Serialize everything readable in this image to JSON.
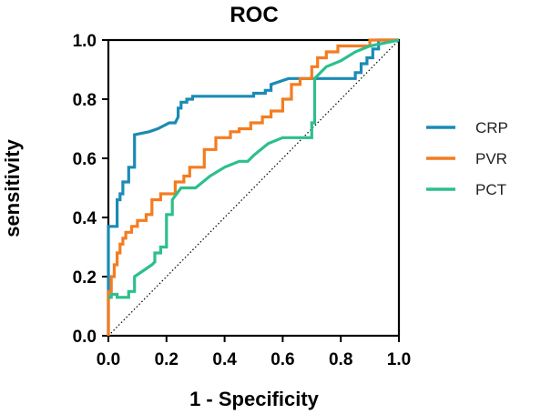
{
  "chart_data": {
    "type": "line",
    "title": "ROC",
    "xlabel": "1 - Specificity",
    "ylabel": "sensitivity",
    "xlim": [
      0.0,
      1.0
    ],
    "ylim": [
      0.0,
      1.0
    ],
    "xticks": [
      "0.0",
      "0.2",
      "0.4",
      "0.6",
      "0.8",
      "1.0"
    ],
    "yticks": [
      "0.0",
      "0.2",
      "0.4",
      "0.6",
      "0.8",
      "1.0"
    ],
    "grid": false,
    "legend_position": "right",
    "reference_line": {
      "style": "dotted",
      "color": "#000000",
      "x": [
        0,
        1
      ],
      "y": [
        0,
        1
      ]
    },
    "series": [
      {
        "name": "CRP",
        "color": "#1a8bb5",
        "x": [
          0,
          0,
          0.03,
          0.03,
          0.04,
          0.04,
          0.05,
          0.05,
          0.07,
          0.07,
          0.09,
          0.09,
          0.14,
          0.17,
          0.21,
          0.23,
          0.24,
          0.24,
          0.25,
          0.25,
          0.27,
          0.27,
          0.29,
          0.29,
          0.5,
          0.5,
          0.54,
          0.54,
          0.56,
          0.56,
          0.62,
          0.65,
          0.85,
          0.85,
          0.87,
          0.87,
          0.89,
          0.89,
          0.91,
          0.91,
          0.93,
          0.93,
          1.0
        ],
        "y": [
          0,
          0.37,
          0.37,
          0.46,
          0.46,
          0.48,
          0.48,
          0.52,
          0.52,
          0.57,
          0.57,
          0.68,
          0.69,
          0.7,
          0.72,
          0.72,
          0.74,
          0.77,
          0.77,
          0.79,
          0.79,
          0.8,
          0.8,
          0.81,
          0.81,
          0.82,
          0.82,
          0.83,
          0.83,
          0.85,
          0.87,
          0.87,
          0.87,
          0.89,
          0.89,
          0.92,
          0.92,
          0.94,
          0.94,
          0.97,
          0.97,
          1.0,
          1.0
        ]
      },
      {
        "name": "PVR",
        "color": "#f47c20",
        "x": [
          0,
          0,
          0.01,
          0.01,
          0.02,
          0.02,
          0.03,
          0.03,
          0.04,
          0.04,
          0.05,
          0.05,
          0.06,
          0.06,
          0.08,
          0.08,
          0.1,
          0.1,
          0.13,
          0.13,
          0.15,
          0.15,
          0.18,
          0.18,
          0.23,
          0.23,
          0.26,
          0.26,
          0.28,
          0.28,
          0.33,
          0.33,
          0.37,
          0.37,
          0.42,
          0.42,
          0.45,
          0.45,
          0.49,
          0.49,
          0.53,
          0.53,
          0.56,
          0.56,
          0.6,
          0.6,
          0.63,
          0.63,
          0.66,
          0.66,
          0.7,
          0.7,
          0.72,
          0.72,
          0.75,
          0.75,
          0.79,
          0.79,
          0.9,
          0.9,
          0.95,
          1.0
        ],
        "y": [
          0,
          0.15,
          0.15,
          0.2,
          0.2,
          0.24,
          0.24,
          0.28,
          0.28,
          0.31,
          0.31,
          0.33,
          0.33,
          0.35,
          0.35,
          0.37,
          0.37,
          0.39,
          0.39,
          0.41,
          0.41,
          0.46,
          0.46,
          0.48,
          0.48,
          0.52,
          0.52,
          0.54,
          0.54,
          0.57,
          0.57,
          0.63,
          0.63,
          0.67,
          0.67,
          0.69,
          0.69,
          0.7,
          0.7,
          0.72,
          0.72,
          0.74,
          0.74,
          0.76,
          0.76,
          0.8,
          0.8,
          0.85,
          0.85,
          0.87,
          0.87,
          0.91,
          0.91,
          0.94,
          0.94,
          0.96,
          0.96,
          0.98,
          0.98,
          1.0,
          1.0,
          1.0
        ]
      },
      {
        "name": "PCT",
        "color": "#2dbf8c",
        "x": [
          0,
          0.01,
          0.01,
          0.03,
          0.03,
          0.07,
          0.07,
          0.09,
          0.09,
          0.12,
          0.15,
          0.16,
          0.16,
          0.18,
          0.18,
          0.2,
          0.2,
          0.22,
          0.22,
          0.25,
          0.3,
          0.35,
          0.4,
          0.45,
          0.48,
          0.5,
          0.55,
          0.6,
          0.65,
          0.7,
          0.7,
          0.71,
          0.71,
          0.73,
          0.75,
          0.8,
          0.85,
          0.9,
          0.95,
          1.0
        ],
        "y": [
          0.13,
          0.13,
          0.14,
          0.14,
          0.13,
          0.13,
          0.15,
          0.15,
          0.2,
          0.22,
          0.24,
          0.25,
          0.28,
          0.28,
          0.3,
          0.3,
          0.41,
          0.41,
          0.46,
          0.5,
          0.5,
          0.54,
          0.57,
          0.59,
          0.59,
          0.61,
          0.65,
          0.67,
          0.67,
          0.67,
          0.72,
          0.72,
          0.87,
          0.89,
          0.91,
          0.93,
          0.96,
          0.98,
          0.99,
          1.0
        ]
      }
    ]
  }
}
